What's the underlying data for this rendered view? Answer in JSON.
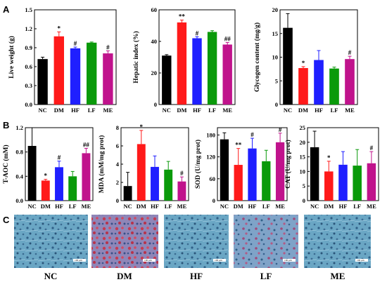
{
  "panel_labels": [
    "A",
    "B",
    "C"
  ],
  "colors": [
    "#000000",
    "#ff1a1a",
    "#1f1fff",
    "#0a9a0a",
    "#c0138c"
  ],
  "chart_data": [
    {
      "type": "bar",
      "panel": "A",
      "title": "",
      "ylabel": "Live weight (g)",
      "categories": [
        "NC",
        "DM",
        "HF",
        "LF",
        "ME"
      ],
      "values": [
        0.72,
        1.08,
        0.89,
        0.98,
        0.81
      ],
      "errors": [
        0.03,
        0.07,
        0.02,
        0.01,
        0.04
      ],
      "marks": [
        "",
        "*",
        "#",
        "",
        "#"
      ],
      "ylim": [
        0,
        1.5
      ],
      "yticks": [
        "0.0",
        "0.3",
        "0.6",
        "0.9",
        "1.2",
        "1.5"
      ]
    },
    {
      "type": "bar",
      "panel": "A",
      "title": "",
      "ylabel": "Hepatic index (%)",
      "categories": [
        "NC",
        "DM",
        "HF",
        "LF",
        "ME"
      ],
      "values": [
        31,
        52,
        42,
        46,
        38
      ],
      "errors": [
        0.6,
        1.5,
        1.0,
        0.8,
        1.3
      ],
      "marks": [
        "",
        "**",
        "#",
        "",
        "##"
      ],
      "ylim": [
        0,
        60
      ],
      "yticks": [
        "0",
        "20",
        "40",
        "60"
      ]
    },
    {
      "type": "bar",
      "panel": "A",
      "title": "",
      "ylabel": "Glycogen content (mg/g)",
      "categories": [
        "NC",
        "DM",
        "HF",
        "LF",
        "ME"
      ],
      "values": [
        16.2,
        7.7,
        9.4,
        7.6,
        9.6
      ],
      "errors": [
        3.0,
        0.3,
        2.0,
        0.3,
        0.6
      ],
      "marks": [
        "",
        "*",
        "",
        "",
        "#"
      ],
      "ylim": [
        0,
        20
      ],
      "yticks": [
        "0",
        "5",
        "10",
        "15",
        "20"
      ]
    },
    {
      "type": "bar",
      "panel": "B",
      "title": "",
      "ylabel": "T-AOC (mM)",
      "categories": [
        "NC",
        "DM",
        "HF",
        "LF",
        "ME"
      ],
      "values": [
        0.9,
        0.33,
        0.55,
        0.4,
        0.78
      ],
      "errors": [
        0.3,
        0.02,
        0.1,
        0.08,
        0.08
      ],
      "marks": [
        "",
        "*",
        "#",
        "",
        "##"
      ],
      "ylim": [
        0,
        1.2
      ],
      "yticks": [
        "0.0",
        "0.4",
        "0.8",
        "1.2"
      ]
    },
    {
      "type": "bar",
      "panel": "B",
      "title": "",
      "ylabel": "MDA (mM/mg prot)",
      "categories": [
        "NC",
        "DM",
        "HF",
        "LF",
        "ME"
      ],
      "values": [
        1.6,
        6.2,
        3.7,
        3.4,
        2.1
      ],
      "errors": [
        1.5,
        1.5,
        1.2,
        0.9,
        0.5
      ],
      "marks": [
        "",
        "*",
        "",
        "",
        "#"
      ],
      "ylim": [
        0,
        8
      ],
      "yticks": [
        "0",
        "2",
        "4",
        "6",
        "8"
      ]
    },
    {
      "type": "bar",
      "panel": "B",
      "title": "",
      "ylabel": "SOD (U/mg prot)",
      "categories": [
        "NC",
        "DM",
        "HF",
        "LF",
        "ME"
      ],
      "values": [
        168,
        98,
        143,
        108,
        160
      ],
      "errors": [
        18,
        45,
        28,
        30,
        25
      ],
      "marks": [
        "",
        "**",
        "#",
        "",
        "#"
      ],
      "ylim": [
        0,
        200
      ],
      "yticks": [
        "0",
        "60",
        "120",
        "180"
      ]
    },
    {
      "type": "bar",
      "panel": "B",
      "title": "",
      "ylabel": "CAT (U/mg prot)",
      "categories": [
        "NC",
        "DM",
        "HF",
        "LF",
        "ME"
      ],
      "values": [
        18.3,
        10.0,
        12.3,
        12.0,
        12.8
      ],
      "errors": [
        5.5,
        3.5,
        4.5,
        5.5,
        4.0
      ],
      "marks": [
        "",
        "*",
        "",
        "",
        "#"
      ],
      "ylim": [
        0,
        25
      ],
      "yticks": [
        "0",
        "5",
        "10",
        "15",
        "20",
        "25"
      ]
    }
  ],
  "histology": {
    "labels": [
      "NC",
      "DM",
      "HF",
      "LF",
      "ME"
    ],
    "scalebar": "100 μm"
  }
}
